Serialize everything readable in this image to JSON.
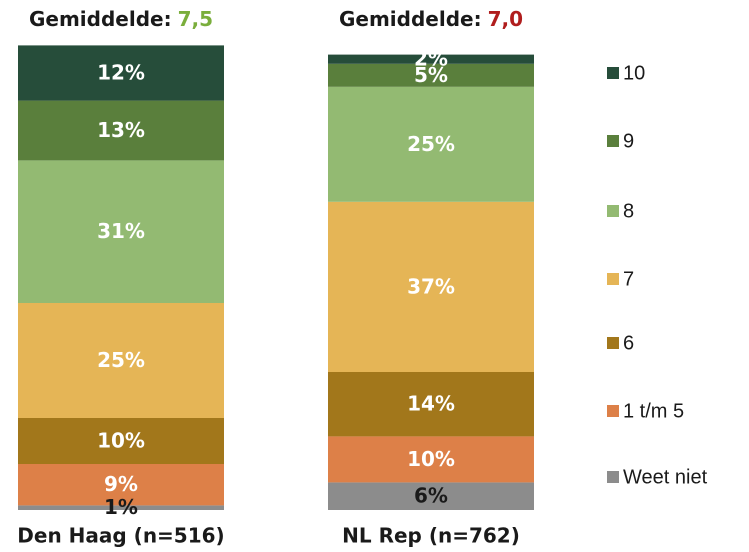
{
  "chart_data": {
    "type": "stacked_bar",
    "categories": [
      "Den Haag (n=516)",
      "NL Rep (n=762)"
    ],
    "annotations": [
      {
        "text": "Gemiddelde:",
        "value_label": "7,5",
        "color": "#7aae3c"
      },
      {
        "text": "Gemiddelde:",
        "value_label": "7,0",
        "color": "#b01d1d"
      }
    ],
    "ylim": [
      0,
      100
    ],
    "series": [
      {
        "name": "Weet niet",
        "color": "#8c8c8c",
        "label_color": "#1a1a1a",
        "values": [
          1,
          6
        ],
        "value_labels": [
          "1%",
          "6%"
        ]
      },
      {
        "name": "1 t/m 5",
        "color": "#dd8048",
        "label_color": "#ffffff",
        "values": [
          9,
          10
        ],
        "value_labels": [
          "9%",
          "10%"
        ]
      },
      {
        "name": "6",
        "color": "#a2771b",
        "label_color": "#ffffff",
        "values": [
          10,
          14
        ],
        "value_labels": [
          "10%",
          "14%"
        ]
      },
      {
        "name": "7",
        "color": "#e5b556",
        "label_color": "#ffffff",
        "values": [
          25,
          37
        ],
        "value_labels": [
          "25%",
          "37%"
        ]
      },
      {
        "name": "8",
        "color": "#93ba72",
        "label_color": "#ffffff",
        "values": [
          31,
          25
        ],
        "value_labels": [
          "31%",
          "25%"
        ]
      },
      {
        "name": "9",
        "color": "#5a7f3c",
        "label_color": "#ffffff",
        "values": [
          13,
          5
        ],
        "value_labels": [
          "13%",
          "5%"
        ]
      },
      {
        "name": "10",
        "color": "#264d3a",
        "label_color": "#ffffff",
        "values": [
          12,
          2
        ],
        "value_labels": [
          "12%",
          "2%"
        ]
      }
    ]
  }
}
